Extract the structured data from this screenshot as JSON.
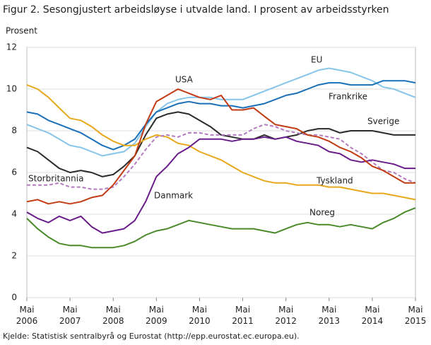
{
  "chart_data": {
    "type": "line",
    "title": "Figur 2. Sesongjustert arbeidsløyse i utvalde land. I prosent av arbeidsstyrken",
    "y_label": "Prosent",
    "source": "Kjelde: Statistisk sentralbyrå og Eurostat (http://epp.eurostat.ec.europa.eu).",
    "x": [
      "2006-05",
      "2006-08",
      "2006-11",
      "2007-02",
      "2007-05",
      "2007-08",
      "2007-11",
      "2008-02",
      "2008-05",
      "2008-08",
      "2008-11",
      "2009-02",
      "2009-05",
      "2009-08",
      "2009-11",
      "2010-02",
      "2010-05",
      "2010-08",
      "2010-11",
      "2011-02",
      "2011-05",
      "2011-08",
      "2011-11",
      "2012-02",
      "2012-05",
      "2012-08",
      "2012-11",
      "2013-02",
      "2013-05",
      "2013-08",
      "2013-11",
      "2014-02",
      "2014-05",
      "2014-08",
      "2014-11",
      "2015-02",
      "2015-05"
    ],
    "xlim": [
      "2006-05",
      "2015-05"
    ],
    "xticks": [
      {
        "value": "2006-05",
        "label": "Mai 2006"
      },
      {
        "value": "2007-05",
        "label": "Mai 2007"
      },
      {
        "value": "2008-05",
        "label": "Mai 2008"
      },
      {
        "value": "2009-05",
        "label": "Mai 2009"
      },
      {
        "value": "2010-05",
        "label": "Mai 2010"
      },
      {
        "value": "2011-05",
        "label": "Mai 2011"
      },
      {
        "value": "2012-05",
        "label": "Mai 2012"
      },
      {
        "value": "2013-05",
        "label": "Mai 2013"
      },
      {
        "value": "2014-05",
        "label": "Mai 2014"
      },
      {
        "value": "2015-05",
        "label": "Mai 2015"
      }
    ],
    "ylim": [
      0,
      12
    ],
    "yticks": [
      0,
      2,
      4,
      6,
      8,
      10,
      12
    ],
    "grid": true,
    "series": [
      {
        "name": "EU",
        "color": "#86c5ea",
        "values": [
          8.3,
          8.1,
          7.9,
          7.6,
          7.3,
          7.2,
          7.0,
          6.8,
          6.9,
          7.0,
          7.4,
          8.2,
          8.9,
          9.3,
          9.5,
          9.6,
          9.6,
          9.6,
          9.5,
          9.5,
          9.5,
          9.7,
          9.9,
          10.1,
          10.3,
          10.5,
          10.7,
          10.9,
          11.0,
          10.9,
          10.8,
          10.6,
          10.4,
          10.1,
          10.0,
          9.8,
          9.6
        ]
      },
      {
        "name": "Frankrike",
        "color": "#1a70b8",
        "values": [
          8.9,
          8.8,
          8.5,
          8.3,
          8.1,
          7.9,
          7.6,
          7.3,
          7.1,
          7.3,
          7.6,
          8.3,
          8.9,
          9.1,
          9.3,
          9.4,
          9.3,
          9.3,
          9.2,
          9.2,
          9.1,
          9.2,
          9.3,
          9.5,
          9.7,
          9.8,
          10.0,
          10.2,
          10.3,
          10.3,
          10.2,
          10.2,
          10.2,
          10.4,
          10.4,
          10.4,
          10.3
        ]
      },
      {
        "name": "Sverige",
        "color": "#2b2b2b",
        "values": [
          7.2,
          7.0,
          6.6,
          6.2,
          6.0,
          6.1,
          6.0,
          5.8,
          5.9,
          6.3,
          6.8,
          7.8,
          8.6,
          8.8,
          8.9,
          8.8,
          8.5,
          8.2,
          7.8,
          7.7,
          7.6,
          7.6,
          7.8,
          7.6,
          7.7,
          7.8,
          8.0,
          8.1,
          8.1,
          7.9,
          8.0,
          8.0,
          8.0,
          7.9,
          7.8,
          7.8,
          7.8
        ]
      },
      {
        "name": "Tyskland",
        "color": "#e8a81c",
        "values": [
          10.2,
          10.0,
          9.6,
          9.1,
          8.6,
          8.5,
          8.2,
          7.8,
          7.5,
          7.3,
          7.3,
          7.6,
          7.8,
          7.7,
          7.4,
          7.3,
          7.0,
          6.8,
          6.6,
          6.3,
          6.0,
          5.8,
          5.6,
          5.5,
          5.5,
          5.4,
          5.4,
          5.4,
          5.3,
          5.3,
          5.2,
          5.1,
          5.0,
          5.0,
          4.9,
          4.8,
          4.7
        ]
      },
      {
        "name": "Storbritannia",
        "color": "#b37ac0",
        "dashed": true,
        "values": [
          5.4,
          5.4,
          5.4,
          5.5,
          5.3,
          5.3,
          5.2,
          5.2,
          5.3,
          5.8,
          6.4,
          7.1,
          7.7,
          7.8,
          7.7,
          7.9,
          7.9,
          7.8,
          7.8,
          7.8,
          7.8,
          8.1,
          8.3,
          8.2,
          8.0,
          7.9,
          7.8,
          7.8,
          7.7,
          7.6,
          7.2,
          6.9,
          6.5,
          6.1,
          6.0,
          5.7,
          5.5
        ]
      },
      {
        "name": "Danmark",
        "color": "#6a1d8a",
        "values": [
          4.1,
          3.8,
          3.6,
          3.9,
          3.7,
          3.9,
          3.4,
          3.1,
          3.2,
          3.3,
          3.7,
          4.6,
          5.8,
          6.3,
          6.9,
          7.2,
          7.6,
          7.6,
          7.6,
          7.5,
          7.6,
          7.6,
          7.7,
          7.6,
          7.7,
          7.5,
          7.4,
          7.3,
          7.0,
          6.9,
          6.6,
          6.5,
          6.6,
          6.5,
          6.4,
          6.2,
          6.2
        ]
      },
      {
        "name": "USA",
        "color": "#c23b12",
        "values": [
          4.6,
          4.7,
          4.5,
          4.6,
          4.5,
          4.6,
          4.8,
          4.9,
          5.4,
          6.1,
          6.8,
          8.3,
          9.4,
          9.7,
          10.0,
          9.8,
          9.6,
          9.5,
          9.7,
          9.0,
          9.0,
          9.1,
          8.7,
          8.3,
          8.2,
          8.1,
          7.8,
          7.7,
          7.5,
          7.2,
          7.0,
          6.7,
          6.3,
          6.1,
          5.8,
          5.5,
          5.5
        ]
      },
      {
        "name": "Noreg",
        "color": "#4a8a2a",
        "values": [
          3.8,
          3.3,
          2.9,
          2.6,
          2.5,
          2.5,
          2.4,
          2.4,
          2.4,
          2.5,
          2.7,
          3.0,
          3.2,
          3.3,
          3.5,
          3.7,
          3.6,
          3.5,
          3.4,
          3.3,
          3.3,
          3.3,
          3.2,
          3.1,
          3.3,
          3.5,
          3.6,
          3.5,
          3.5,
          3.4,
          3.5,
          3.4,
          3.3,
          3.6,
          3.8,
          4.1,
          4.3
        ]
      }
    ]
  }
}
